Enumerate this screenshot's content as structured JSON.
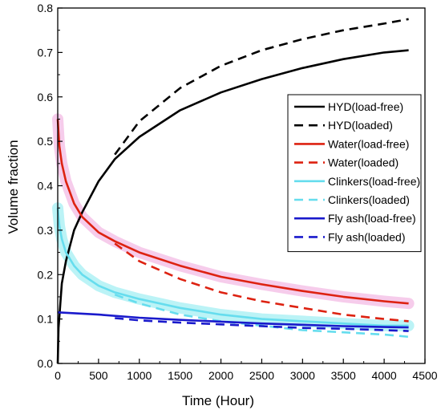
{
  "chart_data": {
    "type": "line",
    "xlabel": "Time (Hour)",
    "ylabel": "Volume fraction",
    "xlim": [
      0,
      4500
    ],
    "ylim": [
      0,
      0.8
    ],
    "xticks": [
      "0",
      "500",
      "1000",
      "1500",
      "2000",
      "2500",
      "3000",
      "3500",
      "4000",
      "4500"
    ],
    "yticks": [
      "0.0",
      "0.1",
      "0.2",
      "0.3",
      "0.4",
      "0.5",
      "0.6",
      "0.7",
      "0.8"
    ],
    "legend_position": "right",
    "grid": false,
    "series": [
      {
        "name": "HYD(load-free)",
        "color": "#000000",
        "dash": "solid",
        "shading": "",
        "x": [
          0,
          10,
          50,
          100,
          200,
          300,
          500,
          700,
          1000,
          1500,
          2000,
          2500,
          3000,
          3500,
          4000,
          4300
        ],
        "y": [
          0,
          0.08,
          0.18,
          0.23,
          0.3,
          0.34,
          0.41,
          0.46,
          0.51,
          0.57,
          0.61,
          0.64,
          0.665,
          0.685,
          0.7,
          0.705
        ]
      },
      {
        "name": "HYD(loaded)",
        "color": "#000000",
        "dash": "dashed",
        "shading": "",
        "x": [
          700,
          1000,
          1500,
          2000,
          2500,
          3000,
          3500,
          4000,
          4300
        ],
        "y": [
          0.47,
          0.545,
          0.62,
          0.67,
          0.705,
          0.73,
          0.75,
          0.765,
          0.775
        ]
      },
      {
        "name": "Water(load-free)",
        "color": "#dd2211",
        "dash": "solid",
        "shading": "#f4bfe6",
        "x": [
          0,
          20,
          50,
          100,
          200,
          300,
          500,
          700,
          1000,
          1500,
          2000,
          2500,
          3000,
          3500,
          4000,
          4300
        ],
        "y": [
          0.55,
          0.49,
          0.45,
          0.41,
          0.36,
          0.33,
          0.295,
          0.275,
          0.25,
          0.22,
          0.195,
          0.178,
          0.163,
          0.15,
          0.14,
          0.135
        ]
      },
      {
        "name": "Water(loaded)",
        "color": "#dd2211",
        "dash": "dashed",
        "shading": "",
        "x": [
          700,
          1000,
          1500,
          2000,
          2500,
          3000,
          3500,
          4000,
          4300
        ],
        "y": [
          0.27,
          0.23,
          0.19,
          0.16,
          0.14,
          0.125,
          0.11,
          0.1,
          0.095
        ]
      },
      {
        "name": "Clinkers(load-free)",
        "color": "#66ddee",
        "dash": "solid",
        "shading": "#aaf0f4",
        "x": [
          0,
          20,
          50,
          100,
          200,
          300,
          500,
          700,
          1000,
          1500,
          2000,
          2500,
          3000,
          3500,
          4000,
          4300
        ],
        "y": [
          0.35,
          0.31,
          0.28,
          0.25,
          0.22,
          0.2,
          0.175,
          0.16,
          0.145,
          0.125,
          0.11,
          0.1,
          0.095,
          0.09,
          0.085,
          0.085
        ]
      },
      {
        "name": "Clinkers(loaded)",
        "color": "#66ddee",
        "dash": "dashed",
        "shading": "",
        "x": [
          700,
          1000,
          1500,
          2000,
          2500,
          3000,
          3500,
          4000,
          4300
        ],
        "y": [
          0.155,
          0.135,
          0.11,
          0.095,
          0.085,
          0.075,
          0.07,
          0.065,
          0.06
        ]
      },
      {
        "name": "Fly ash(load-free)",
        "color": "#1a1acc",
        "dash": "solid",
        "shading": "",
        "x": [
          0,
          500,
          1000,
          1500,
          2000,
          2500,
          3000,
          3500,
          4000,
          4300
        ],
        "y": [
          0.115,
          0.11,
          0.103,
          0.098,
          0.094,
          0.09,
          0.087,
          0.084,
          0.082,
          0.081
        ]
      },
      {
        "name": "Fly ash(loaded)",
        "color": "#1a1acc",
        "dash": "dashed",
        "shading": "",
        "x": [
          700,
          1000,
          1500,
          2000,
          2500,
          3000,
          3500,
          4000,
          4300
        ],
        "y": [
          0.102,
          0.097,
          0.092,
          0.088,
          0.084,
          0.08,
          0.078,
          0.075,
          0.073
        ]
      }
    ]
  }
}
